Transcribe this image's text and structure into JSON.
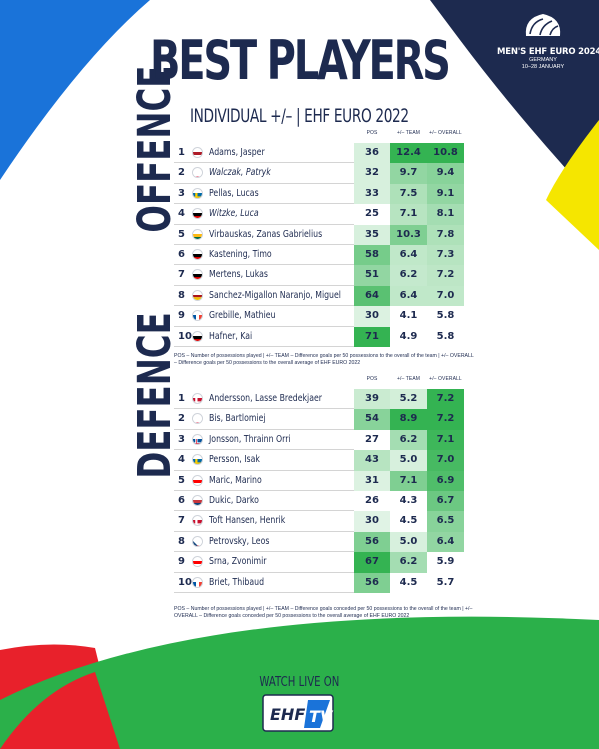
{
  "header": {
    "title": "BEST PLAYERS",
    "subtitle": "INDIVIDUAL +/– | EHF EURO 2022"
  },
  "event_logo": {
    "title": "MEN'S EHF EURO 2024",
    "country": "GERMANY",
    "dates": "10–28 JANUARY",
    "mark": "EHF"
  },
  "columns": {
    "pos": "POS",
    "team": "+/– TEAM",
    "overall": "+/– OVERALL"
  },
  "colors": {
    "navy": "#1d2a4f",
    "green": "#2bb04a",
    "blue": "#1a73d9",
    "yellow": "#f5e600",
    "red": "#e8212b"
  },
  "offence": {
    "label": "OFFENCE",
    "rows": [
      {
        "rank": "1",
        "flag": "netherlands",
        "name": "Adams, Jasper",
        "italic": false,
        "pos": "36",
        "team": "12.4",
        "overall": "10.8",
        "pos_level": 0.08,
        "team_level": 0.95,
        "overall_level": 0.95
      },
      {
        "rank": "2",
        "flag": "poland",
        "name": "Walczak, Patryk",
        "italic": true,
        "pos": "32",
        "team": "9.7",
        "overall": "9.4",
        "pos_level": 0.08,
        "team_level": 0.45,
        "overall_level": 0.5
      },
      {
        "rank": "3",
        "flag": "sweden",
        "name": "Pellas, Lucas",
        "italic": false,
        "pos": "33",
        "team": "7.5",
        "overall": "9.1",
        "pos_level": 0.08,
        "team_level": 0.3,
        "overall_level": 0.45
      },
      {
        "rank": "4",
        "flag": "germany",
        "name": "Witzke, Luca",
        "italic": true,
        "pos": "25",
        "team": "7.1",
        "overall": "8.1",
        "pos_level": 0.0,
        "team_level": 0.25,
        "overall_level": 0.35
      },
      {
        "rank": "5",
        "flag": "lithuania",
        "name": "Virbauskas, Zanas Gabrielius",
        "italic": false,
        "pos": "35",
        "team": "10.3",
        "overall": "7.8",
        "pos_level": 0.08,
        "team_level": 0.55,
        "overall_level": 0.3
      },
      {
        "rank": "6",
        "flag": "germany",
        "name": "Kastening, Timo",
        "italic": false,
        "pos": "58",
        "team": "6.4",
        "overall": "7.3",
        "pos_level": 0.6,
        "team_level": 0.2,
        "overall_level": 0.25
      },
      {
        "rank": "7",
        "flag": "germany",
        "name": "Mertens, Lukas",
        "italic": false,
        "pos": "51",
        "team": "6.2",
        "overall": "7.2",
        "pos_level": 0.45,
        "team_level": 0.18,
        "overall_level": 0.22
      },
      {
        "rank": "8",
        "flag": "spain",
        "name": "Sanchez-Migallon Naranjo, Miguel",
        "italic": false,
        "pos": "64",
        "team": "6.4",
        "overall": "7.0",
        "pos_level": 0.75,
        "team_level": 0.2,
        "overall_level": 0.2
      },
      {
        "rank": "9",
        "flag": "france",
        "name": "Grebille, Mathieu",
        "italic": false,
        "pos": "30",
        "team": "4.1",
        "overall": "5.8",
        "pos_level": 0.05,
        "team_level": 0.0,
        "overall_level": 0.0
      },
      {
        "rank": "10",
        "flag": "germany",
        "name": "Hafner, Kai",
        "italic": false,
        "pos": "71",
        "team": "4.9",
        "overall": "5.8",
        "pos_level": 0.95,
        "team_level": 0.02,
        "overall_level": 0.0
      }
    ],
    "note": "POS – Number of possessions played | +/– TEAM – Difference goals per 50 possessions to the overall of the team | +/– OVERALL – Difference goals per 50 possessions to the overall average of EHF EURO 2022"
  },
  "defence": {
    "label": "DEFENCE",
    "rows": [
      {
        "rank": "1",
        "flag": "denmark",
        "name": "Andersson, Lasse Bredekjaer",
        "italic": false,
        "pos": "39",
        "team": "5.2",
        "overall": "7.2",
        "pos_level": 0.15,
        "team_level": 0.1,
        "overall_level": 0.95
      },
      {
        "rank": "2",
        "flag": "poland",
        "name": "Bis, Bartlomiej",
        "italic": false,
        "pos": "54",
        "team": "8.9",
        "overall": "7.2",
        "pos_level": 0.5,
        "team_level": 0.95,
        "overall_level": 0.95
      },
      {
        "rank": "3",
        "flag": "iceland",
        "name": "Jonsson, Thrainn Orri",
        "italic": false,
        "pos": "27",
        "team": "6.2",
        "overall": "7.1",
        "pos_level": 0.0,
        "team_level": 0.35,
        "overall_level": 0.9
      },
      {
        "rank": "4",
        "flag": "sweden",
        "name": "Persson, Isak",
        "italic": false,
        "pos": "43",
        "team": "5.0",
        "overall": "7.0",
        "pos_level": 0.25,
        "team_level": 0.08,
        "overall_level": 0.85
      },
      {
        "rank": "5",
        "flag": "croatia",
        "name": "Maric, Marino",
        "italic": false,
        "pos": "31",
        "team": "7.1",
        "overall": "6.9",
        "pos_level": 0.05,
        "team_level": 0.55,
        "overall_level": 0.8
      },
      {
        "rank": "6",
        "flag": "serbia",
        "name": "Dukic, Darko",
        "italic": false,
        "pos": "26",
        "team": "4.3",
        "overall": "6.7",
        "pos_level": 0.0,
        "team_level": 0.0,
        "overall_level": 0.65
      },
      {
        "rank": "7",
        "flag": "denmark",
        "name": "Toft Hansen, Henrik",
        "italic": false,
        "pos": "30",
        "team": "4.5",
        "overall": "6.5",
        "pos_level": 0.03,
        "team_level": 0.02,
        "overall_level": 0.5
      },
      {
        "rank": "8",
        "flag": "czech",
        "name": "Petrovsky, Leos",
        "italic": false,
        "pos": "56",
        "team": "5.0",
        "overall": "6.4",
        "pos_level": 0.55,
        "team_level": 0.08,
        "overall_level": 0.45
      },
      {
        "rank": "9",
        "flag": "croatia",
        "name": "Srna, Zvonimir",
        "italic": false,
        "pos": "67",
        "team": "6.2",
        "overall": "5.9",
        "pos_level": 0.95,
        "team_level": 0.35,
        "overall_level": 0.0
      },
      {
        "rank": "10",
        "flag": "france",
        "name": "Briet, Thibaud",
        "italic": false,
        "pos": "56",
        "team": "4.5",
        "overall": "5.7",
        "pos_level": 0.55,
        "team_level": 0.02,
        "overall_level": 0.0
      }
    ],
    "note": "POS – Number of possessions played | +/– TEAM – Difference goals conceded per 50 possessions to the overall of the team | +/– OVERALL – Difference goals conceded per 50 possessions to the overall average of EHF EURO 2022"
  },
  "footer": {
    "watch_label": "WATCH LIVE ON",
    "brand": "EHF",
    "brand_tv": "TV"
  }
}
